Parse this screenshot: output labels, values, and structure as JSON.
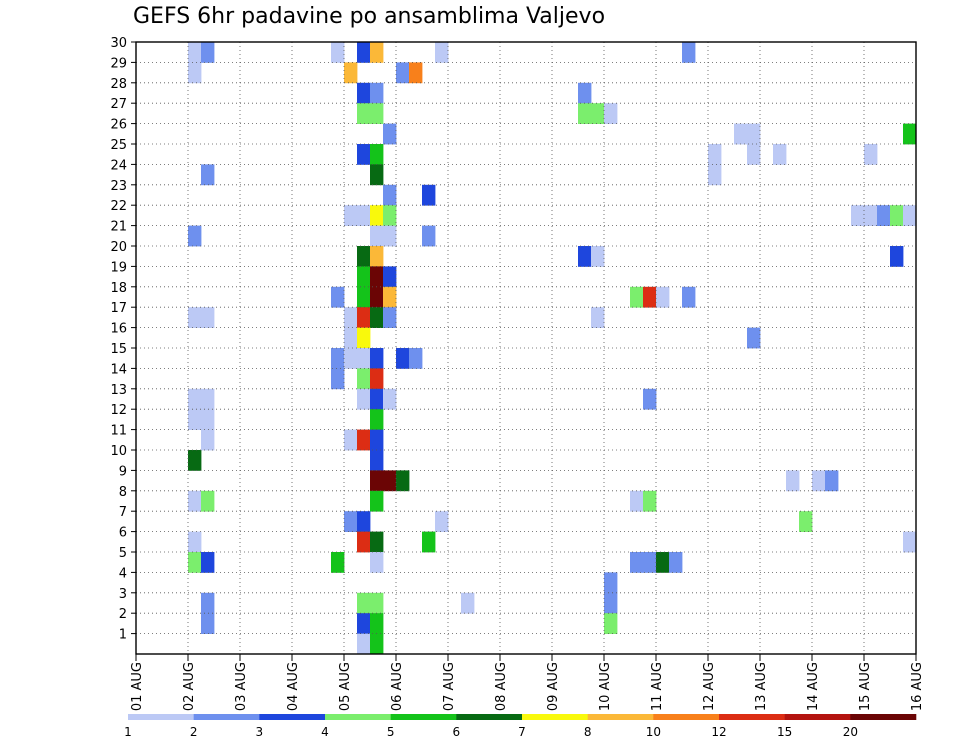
{
  "chart_data": {
    "type": "heatmap",
    "title": "GEFS 6hr padavine po ansamblima Valjevo",
    "xlabel": "",
    "ylabel": "",
    "x_ticks": [
      "01 AUG",
      "02 AUG",
      "03 AUG",
      "04 AUG",
      "05 AUG",
      "06 AUG",
      "07 AUG",
      "08 AUG",
      "09 AUG",
      "10 AUG",
      "11 AUG",
      "12 AUG",
      "13 AUG",
      "14 AUG",
      "15 AUG",
      "16 AUG"
    ],
    "y_ticks": [
      "1",
      "2",
      "3",
      "4",
      "5",
      "6",
      "7",
      "8",
      "9",
      "10",
      "11",
      "12",
      "13",
      "14",
      "15",
      "16",
      "17",
      "18",
      "19",
      "20",
      "21",
      "22",
      "23",
      "24",
      "25",
      "26",
      "27",
      "28",
      "29",
      "30"
    ],
    "x_unit": "6-hour step from 01 AUG 00Z",
    "xlim": [
      0,
      60
    ],
    "ylim": [
      0,
      30
    ],
    "grid": true,
    "colorbar": {
      "levels": [
        "1",
        "2",
        "3",
        "4",
        "5",
        "6",
        "7",
        "8",
        "10",
        "12",
        "15",
        "20"
      ],
      "colors": [
        "#bcc9f5",
        "#6e90ee",
        "#1e46dd",
        "#7bee6d",
        "#14c31a",
        "#076a13",
        "#f9f90c",
        "#fbb838",
        "#f8801b",
        "#dc2d14",
        "#b4140f",
        "#6b0505"
      ]
    },
    "cells": [
      {
        "t": 4,
        "m": 30,
        "c": 0
      },
      {
        "t": 5,
        "m": 30,
        "c": 1
      },
      {
        "t": 15,
        "m": 30,
        "c": 0
      },
      {
        "t": 17,
        "m": 30,
        "c": 2
      },
      {
        "t": 18,
        "m": 30,
        "c": 7
      },
      {
        "t": 23,
        "m": 30,
        "c": 0
      },
      {
        "t": 42,
        "m": 30,
        "c": 1
      },
      {
        "t": 4,
        "m": 29,
        "c": 0
      },
      {
        "t": 16,
        "m": 29,
        "c": 7
      },
      {
        "t": 20,
        "m": 29,
        "c": 1
      },
      {
        "t": 21,
        "m": 29,
        "c": 8
      },
      {
        "t": 17,
        "m": 28,
        "c": 2
      },
      {
        "t": 18,
        "m": 28,
        "c": 1
      },
      {
        "t": 34,
        "m": 28,
        "c": 1
      },
      {
        "t": 17,
        "m": 27,
        "c": 3
      },
      {
        "t": 18,
        "m": 27,
        "c": 3
      },
      {
        "t": 34,
        "m": 27,
        "c": 3
      },
      {
        "t": 35,
        "m": 27,
        "c": 3
      },
      {
        "t": 36,
        "m": 27,
        "c": 0
      },
      {
        "t": 19,
        "m": 26,
        "c": 1
      },
      {
        "t": 46,
        "m": 26,
        "c": 0
      },
      {
        "t": 47,
        "m": 26,
        "c": 0
      },
      {
        "t": 59,
        "m": 26,
        "c": 4
      },
      {
        "t": 17,
        "m": 25,
        "c": 2
      },
      {
        "t": 18,
        "m": 25,
        "c": 4
      },
      {
        "t": 44,
        "m": 25,
        "c": 0
      },
      {
        "t": 47,
        "m": 25,
        "c": 0
      },
      {
        "t": 49,
        "m": 25,
        "c": 0
      },
      {
        "t": 56,
        "m": 25,
        "c": 0
      },
      {
        "t": 5,
        "m": 24,
        "c": 1
      },
      {
        "t": 18,
        "m": 24,
        "c": 5
      },
      {
        "t": 44,
        "m": 24,
        "c": 0
      },
      {
        "t": 19,
        "m": 23,
        "c": 1
      },
      {
        "t": 22,
        "m": 23,
        "c": 2
      },
      {
        "t": 16,
        "m": 22,
        "c": 0
      },
      {
        "t": 17,
        "m": 22,
        "c": 0
      },
      {
        "t": 18,
        "m": 22,
        "c": 6
      },
      {
        "t": 19,
        "m": 22,
        "c": 3
      },
      {
        "t": 55,
        "m": 22,
        "c": 0
      },
      {
        "t": 56,
        "m": 22,
        "c": 0
      },
      {
        "t": 57,
        "m": 22,
        "c": 1
      },
      {
        "t": 58,
        "m": 22,
        "c": 3
      },
      {
        "t": 59,
        "m": 22,
        "c": 0
      },
      {
        "t": 4,
        "m": 21,
        "c": 1
      },
      {
        "t": 18,
        "m": 21,
        "c": 0
      },
      {
        "t": 19,
        "m": 21,
        "c": 0
      },
      {
        "t": 22,
        "m": 21,
        "c": 1
      },
      {
        "t": 17,
        "m": 20,
        "c": 5
      },
      {
        "t": 18,
        "m": 20,
        "c": 7
      },
      {
        "t": 34,
        "m": 20,
        "c": 2
      },
      {
        "t": 35,
        "m": 20,
        "c": 0
      },
      {
        "t": 58,
        "m": 20,
        "c": 2
      },
      {
        "t": 17,
        "m": 19,
        "c": 4
      },
      {
        "t": 18,
        "m": 19,
        "c": 11
      },
      {
        "t": 19,
        "m": 19,
        "c": 2
      },
      {
        "t": 15,
        "m": 18,
        "c": 1
      },
      {
        "t": 17,
        "m": 18,
        "c": 4
      },
      {
        "t": 18,
        "m": 18,
        "c": 11
      },
      {
        "t": 19,
        "m": 18,
        "c": 7
      },
      {
        "t": 38,
        "m": 18,
        "c": 3
      },
      {
        "t": 39,
        "m": 18,
        "c": 9
      },
      {
        "t": 40,
        "m": 18,
        "c": 0
      },
      {
        "t": 42,
        "m": 18,
        "c": 1
      },
      {
        "t": 4,
        "m": 17,
        "c": 0
      },
      {
        "t": 5,
        "m": 17,
        "c": 0
      },
      {
        "t": 16,
        "m": 17,
        "c": 0
      },
      {
        "t": 17,
        "m": 17,
        "c": 9
      },
      {
        "t": 18,
        "m": 17,
        "c": 5
      },
      {
        "t": 19,
        "m": 17,
        "c": 1
      },
      {
        "t": 35,
        "m": 17,
        "c": 0
      },
      {
        "t": 16,
        "m": 16,
        "c": 0
      },
      {
        "t": 17,
        "m": 16,
        "c": 6
      },
      {
        "t": 47,
        "m": 16,
        "c": 1
      },
      {
        "t": 15,
        "m": 15,
        "c": 1
      },
      {
        "t": 16,
        "m": 15,
        "c": 0
      },
      {
        "t": 17,
        "m": 15,
        "c": 0
      },
      {
        "t": 18,
        "m": 15,
        "c": 2
      },
      {
        "t": 20,
        "m": 15,
        "c": 2
      },
      {
        "t": 21,
        "m": 15,
        "c": 1
      },
      {
        "t": 15,
        "m": 14,
        "c": 1
      },
      {
        "t": 17,
        "m": 14,
        "c": 3
      },
      {
        "t": 18,
        "m": 14,
        "c": 9
      },
      {
        "t": 4,
        "m": 13,
        "c": 0
      },
      {
        "t": 5,
        "m": 13,
        "c": 0
      },
      {
        "t": 4,
        "m": 12,
        "c": 0
      },
      {
        "t": 5,
        "m": 12,
        "c": 0
      },
      {
        "t": 17,
        "m": 13,
        "c": 0
      },
      {
        "t": 18,
        "m": 13,
        "c": 2
      },
      {
        "t": 19,
        "m": 13,
        "c": 0
      },
      {
        "t": 39,
        "m": 13,
        "c": 1
      },
      {
        "t": 18,
        "m": 12,
        "c": 4
      },
      {
        "t": 5,
        "m": 11,
        "c": 0
      },
      {
        "t": 16,
        "m": 11,
        "c": 0
      },
      {
        "t": 17,
        "m": 11,
        "c": 9
      },
      {
        "t": 18,
        "m": 11,
        "c": 2
      },
      {
        "t": 4,
        "m": 10,
        "c": 5
      },
      {
        "t": 18,
        "m": 10,
        "c": 2
      },
      {
        "t": 18,
        "m": 9,
        "c": 11
      },
      {
        "t": 19,
        "m": 9,
        "c": 11
      },
      {
        "t": 20,
        "m": 9,
        "c": 5
      },
      {
        "t": 50,
        "m": 9,
        "c": 0
      },
      {
        "t": 52,
        "m": 9,
        "c": 0
      },
      {
        "t": 53,
        "m": 9,
        "c": 1
      },
      {
        "t": 4,
        "m": 8,
        "c": 0
      },
      {
        "t": 5,
        "m": 8,
        "c": 3
      },
      {
        "t": 18,
        "m": 8,
        "c": 4
      },
      {
        "t": 38,
        "m": 8,
        "c": 0
      },
      {
        "t": 39,
        "m": 8,
        "c": 3
      },
      {
        "t": 16,
        "m": 7,
        "c": 1
      },
      {
        "t": 17,
        "m": 7,
        "c": 2
      },
      {
        "t": 23,
        "m": 7,
        "c": 0
      },
      {
        "t": 51,
        "m": 7,
        "c": 3
      },
      {
        "t": 4,
        "m": 6,
        "c": 0
      },
      {
        "t": 17,
        "m": 6,
        "c": 9
      },
      {
        "t": 18,
        "m": 6,
        "c": 5
      },
      {
        "t": 22,
        "m": 6,
        "c": 4
      },
      {
        "t": 59,
        "m": 6,
        "c": 0
      },
      {
        "t": 4,
        "m": 5,
        "c": 3
      },
      {
        "t": 5,
        "m": 5,
        "c": 2
      },
      {
        "t": 15,
        "m": 5,
        "c": 4
      },
      {
        "t": 18,
        "m": 5,
        "c": 0
      },
      {
        "t": 38,
        "m": 5,
        "c": 1
      },
      {
        "t": 39,
        "m": 5,
        "c": 1
      },
      {
        "t": 40,
        "m": 5,
        "c": 5
      },
      {
        "t": 41,
        "m": 5,
        "c": 1
      },
      {
        "t": 36,
        "m": 4,
        "c": 1
      },
      {
        "t": 5,
        "m": 3,
        "c": 1
      },
      {
        "t": 17,
        "m": 3,
        "c": 3
      },
      {
        "t": 18,
        "m": 3,
        "c": 3
      },
      {
        "t": 25,
        "m": 3,
        "c": 0
      },
      {
        "t": 36,
        "m": 3,
        "c": 1
      },
      {
        "t": 5,
        "m": 2,
        "c": 1
      },
      {
        "t": 17,
        "m": 2,
        "c": 2
      },
      {
        "t": 18,
        "m": 2,
        "c": 4
      },
      {
        "t": 36,
        "m": 2,
        "c": 3
      },
      {
        "t": 17,
        "m": 1,
        "c": 0
      },
      {
        "t": 18,
        "m": 1,
        "c": 4
      }
    ]
  }
}
